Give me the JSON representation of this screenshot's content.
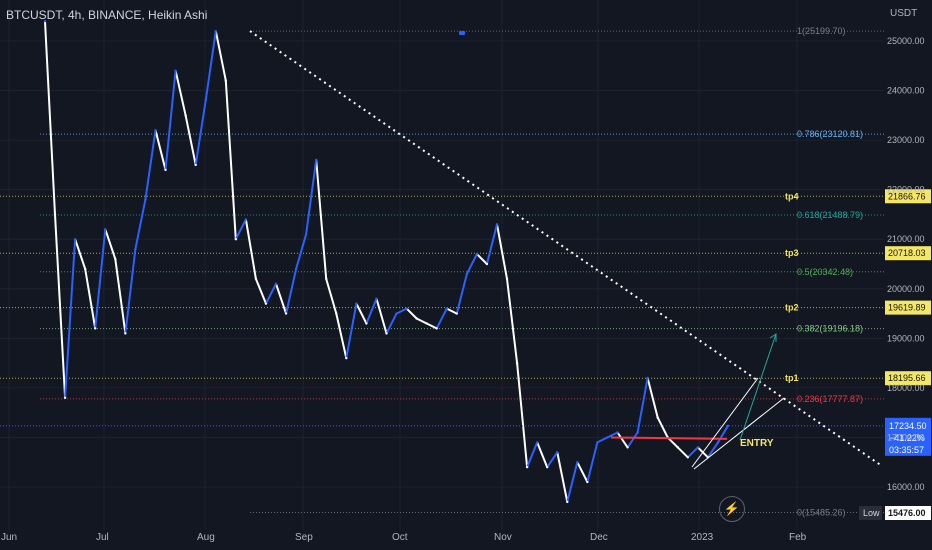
{
  "header": {
    "title": "BTCUSDT, 4h, BINANCE, Heikin Ashi",
    "currency": "USDT"
  },
  "chart_data": {
    "type": "line",
    "title": "BTCUSDT, 4h, BINANCE, Heikin Ashi",
    "xlabel": "",
    "ylabel": "",
    "ylim": [
      15400,
      25600
    ],
    "x_ticks": [
      "Jun",
      "Jul",
      "Aug",
      "Sep",
      "Oct",
      "Nov",
      "Dec",
      "2023",
      "Feb"
    ],
    "y_ticks": [
      16000,
      17000,
      18000,
      19000,
      20000,
      21000,
      22000,
      23000,
      24000,
      25000
    ],
    "y_tick_labels": [
      "16000.00",
      "17000.00",
      "18000.00",
      "19000.00",
      "20000.00",
      "21000.00",
      "22000.00",
      "23000.00",
      "24000.00",
      "25000.00"
    ],
    "grid": true,
    "series": [
      {
        "values": [
          25400,
          21500,
          17800,
          21000,
          20400,
          19200,
          21200,
          20600,
          19100,
          20800,
          21800,
          23200,
          22400,
          24400,
          23500,
          22500,
          23800,
          25199,
          24200,
          21000,
          21400,
          20200,
          19700,
          20100,
          19500,
          20400,
          21100,
          22600,
          20200,
          19500,
          18600,
          19700,
          19300,
          19800,
          19100,
          19500,
          19600,
          19400,
          19300,
          19200,
          19600,
          19500,
          20300,
          20700,
          20500,
          21300,
          20200,
          18500,
          16400,
          16900,
          16400,
          16700,
          15700,
          16500,
          16100,
          16900,
          17000,
          17100,
          16800,
          17100,
          18200,
          17400,
          17000,
          16800,
          16600,
          16800,
          16600,
          16900,
          17234
        ]
      }
    ]
  },
  "fib_levels": [
    {
      "label": "1(25199.70)",
      "value": 25199.7,
      "color": "#787b86"
    },
    {
      "label": "0.786(23120.81)",
      "value": 23120.81,
      "color": "#64b5f6"
    },
    {
      "label": "0.618(21488.79)",
      "value": 21488.79,
      "color": "#26a69a"
    },
    {
      "label": "0.5(20342.48)",
      "value": 20342.48,
      "color": "#4caf50"
    },
    {
      "label": "0.382(19196.18)",
      "value": 19196.18,
      "color": "#81c784"
    },
    {
      "label": "0.236(17777.87)",
      "value": 17777.87,
      "color": "#f23645"
    },
    {
      "label": "0(15485.26)",
      "value": 15485.26,
      "color": "#787b86"
    }
  ],
  "tp_levels": [
    {
      "label": "tp4",
      "value": 21866.76,
      "price_label": "21866.76"
    },
    {
      "label": "tp3",
      "value": 20718.03,
      "price_label": "20718.03"
    },
    {
      "label": "tp2",
      "value": 19619.89,
      "price_label": "19619.89"
    },
    {
      "label": "tp1",
      "value": 18195.66,
      "price_label": "18195.66"
    }
  ],
  "current_price": {
    "price": "17234.50",
    "change": "−41.22%",
    "countdown": "03:35:57",
    "value": 17234.5,
    "color": "#2962ff"
  },
  "low_marker": {
    "label": "Low",
    "price": "15476.00",
    "value": 15476
  },
  "entry_label": "ENTRY",
  "colors": {
    "background": "#131722",
    "candle_up": "#2962ff",
    "candle_down": "#ffffff",
    "tp_line": "#f5e663",
    "trend_line": "#ffffff",
    "entry_text": "#f5e663",
    "arrow": "#26a69a",
    "resistance": "#f23645"
  }
}
